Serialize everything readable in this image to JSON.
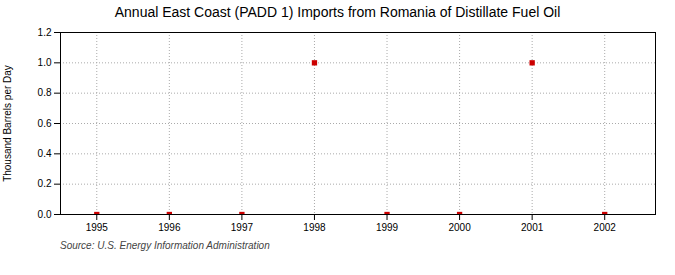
{
  "chart_data": {
    "type": "scatter",
    "title": "Annual East Coast (PADD 1) Imports from Romania of Distillate Fuel Oil",
    "ylabel": "Thousand Barrels per Day",
    "source": "Source: U.S. Energy Information Administration",
    "x": [
      1995,
      1996,
      1997,
      1998,
      1999,
      2000,
      2001,
      2002
    ],
    "values": [
      0.0,
      0.0,
      0.0,
      1.0,
      0.0,
      0.0,
      1.0,
      0.0
    ],
    "color": "#cc0000",
    "marker": "square",
    "xlim": [
      1994.5,
      2002.7
    ],
    "xticks": [
      1995,
      1996,
      1997,
      1998,
      1999,
      2000,
      2001,
      2002
    ],
    "ylim": [
      0,
      1.2
    ],
    "yticks": [
      {
        "value": 0,
        "label": "0.0"
      },
      0.2,
      0.4,
      0.6,
      0.8,
      {
        "value": 1,
        "label": "1.0"
      },
      1.2
    ],
    "grid": true
  }
}
